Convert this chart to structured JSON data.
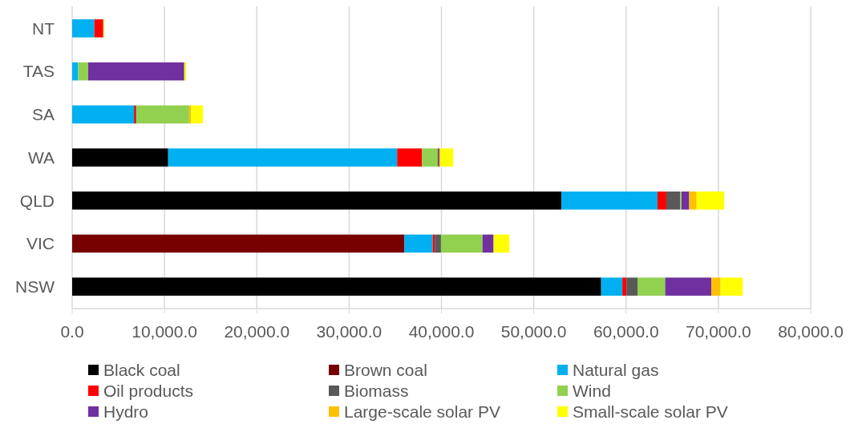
{
  "chart_data": {
    "type": "bar",
    "orientation": "horizontal",
    "stacked": true,
    "categories": [
      "NT",
      "TAS",
      "SA",
      "WA",
      "QLD",
      "VIC",
      "NSW"
    ],
    "series": [
      {
        "name": "Black coal",
        "color": "#000000",
        "values": [
          0,
          0,
          0,
          10400,
          53000,
          0,
          57300
        ]
      },
      {
        "name": "Brown coal",
        "color": "#770000",
        "values": [
          0,
          0,
          0,
          0,
          0,
          36000,
          0
        ]
      },
      {
        "name": "Natural gas",
        "color": "#00b0f0",
        "values": [
          2400,
          640,
          6700,
          24800,
          10400,
          3050,
          2300
        ]
      },
      {
        "name": "Oil products",
        "color": "#ff0000",
        "values": [
          970,
          0,
          170,
          2700,
          960,
          230,
          440
        ]
      },
      {
        "name": "Biomass",
        "color": "#595959",
        "values": [
          0,
          0,
          100,
          0,
          1500,
          670,
          1200
        ]
      },
      {
        "name": "Wind",
        "color": "#92d050",
        "values": [
          0,
          1100,
          5700,
          1700,
          140,
          4500,
          3000
        ]
      },
      {
        "name": "Hydro",
        "color": "#7030a0",
        "values": [
          0,
          10400,
          0,
          170,
          840,
          1200,
          5000
        ]
      },
      {
        "name": "Large-scale solar PV",
        "color": "#ffc000",
        "values": [
          0,
          0,
          200,
          100,
          800,
          null,
          1000
        ]
      },
      {
        "name": "Small-scale solar PV",
        "color": "#ffff00",
        "values": [
          100,
          200,
          1300,
          1400,
          3000,
          1700,
          2400
        ]
      }
    ],
    "xlim": [
      0,
      80000
    ],
    "xticks": [
      {
        "value": 0,
        "label": "0.0"
      },
      {
        "value": 10000,
        "label": "10,000.0"
      },
      {
        "value": 20000,
        "label": "20,000.0"
      },
      {
        "value": 30000,
        "label": "30,000.0"
      },
      {
        "value": 40000,
        "label": "40,000.0"
      },
      {
        "value": 50000,
        "label": "50,000.0"
      },
      {
        "value": 60000,
        "label": "60,000.0"
      },
      {
        "value": 70000,
        "label": "70,000.0"
      },
      {
        "value": 80000,
        "label": "80,000.0"
      }
    ],
    "grid": "x",
    "legend": "bottom"
  }
}
